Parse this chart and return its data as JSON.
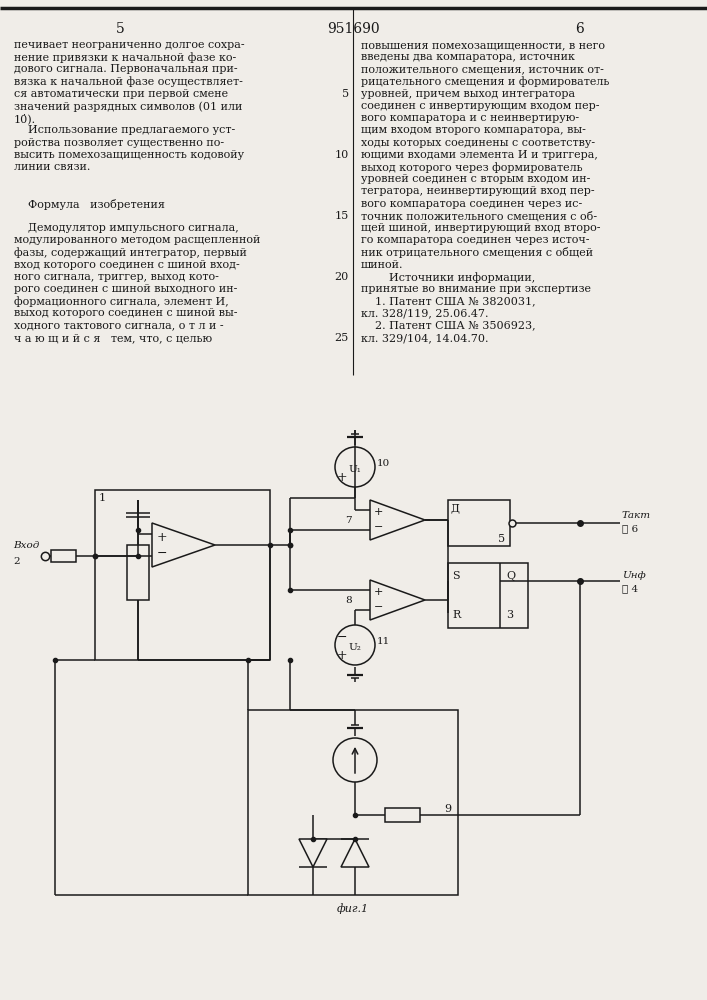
{
  "bg_color": "#f0ede8",
  "line_color": "#1a1a1a",
  "text_color": "#1a1a1a",
  "patent_num": "951690",
  "page_left": "5",
  "page_right": "6"
}
